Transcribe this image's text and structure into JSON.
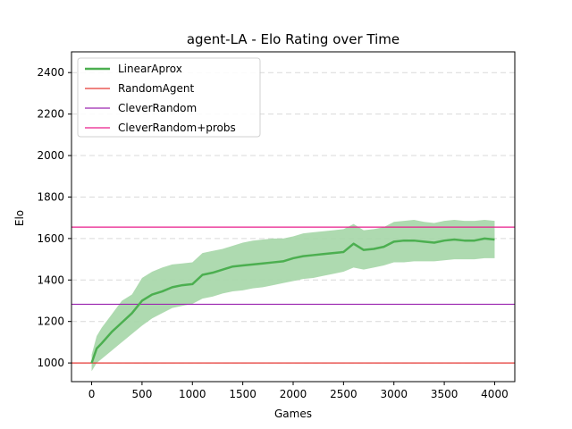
{
  "chart_data": {
    "type": "line",
    "title": "agent-LA - Elo Rating over Time",
    "xlabel": "Games",
    "ylabel": "Elo",
    "xlim": [
      -200,
      4200
    ],
    "ylim": [
      910,
      2500
    ],
    "xticks": [
      0,
      500,
      1000,
      1500,
      2000,
      2500,
      3000,
      3500,
      4000
    ],
    "yticks": [
      1000,
      1200,
      1400,
      1600,
      1800,
      2000,
      2200,
      2400
    ],
    "grid": "y-dashed",
    "legend_position": "top-left",
    "series": [
      {
        "name": "LinearAprox",
        "color": "#4caf50",
        "band_color": "#a5d6a7",
        "x": [
          0,
          50,
          100,
          200,
          300,
          400,
          500,
          600,
          700,
          800,
          900,
          1000,
          1100,
          1200,
          1300,
          1400,
          1500,
          1600,
          1700,
          1800,
          1900,
          2000,
          2100,
          2200,
          2300,
          2400,
          2500,
          2600,
          2700,
          2800,
          2900,
          3000,
          3100,
          3200,
          3300,
          3400,
          3500,
          3600,
          3700,
          3800,
          3900,
          4000
        ],
        "y": [
          1000,
          1070,
          1095,
          1150,
          1195,
          1240,
          1300,
          1330,
          1345,
          1365,
          1375,
          1380,
          1425,
          1435,
          1450,
          1465,
          1470,
          1475,
          1480,
          1485,
          1490,
          1505,
          1515,
          1520,
          1525,
          1530,
          1535,
          1575,
          1545,
          1550,
          1560,
          1585,
          1590,
          1590,
          1585,
          1580,
          1590,
          1595,
          1590,
          1590,
          1600,
          1595
        ],
        "lower": [
          960,
          1000,
          1020,
          1060,
          1100,
          1140,
          1180,
          1215,
          1240,
          1265,
          1275,
          1285,
          1310,
          1320,
          1335,
          1345,
          1350,
          1360,
          1365,
          1375,
          1385,
          1395,
          1405,
          1410,
          1420,
          1430,
          1440,
          1460,
          1450,
          1460,
          1470,
          1485,
          1485,
          1490,
          1490,
          1490,
          1495,
          1500,
          1500,
          1500,
          1505,
          1505
        ],
        "upper": [
          1040,
          1130,
          1170,
          1235,
          1300,
          1330,
          1410,
          1440,
          1460,
          1475,
          1480,
          1485,
          1530,
          1540,
          1550,
          1565,
          1580,
          1590,
          1595,
          1600,
          1600,
          1610,
          1625,
          1630,
          1635,
          1640,
          1645,
          1670,
          1640,
          1645,
          1655,
          1680,
          1685,
          1690,
          1680,
          1675,
          1685,
          1690,
          1685,
          1685,
          1690,
          1685
        ]
      },
      {
        "name": "RandomAgent",
        "color": "#e53935",
        "constant": 1000
      },
      {
        "name": "CleverRandom",
        "color": "#9c27b0",
        "constant": 1283
      },
      {
        "name": "CleverRandom+probs",
        "color": "#e91e8c",
        "constant": 1655
      }
    ]
  }
}
